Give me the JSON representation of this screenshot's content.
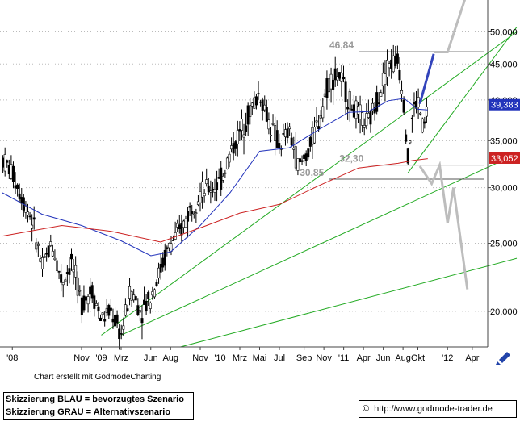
{
  "chart_data": {
    "type": "candlestick",
    "y_scale": "log",
    "ylim": [
      17.8,
      55.5
    ],
    "y_ticks": [
      {
        "value": 20,
        "label": "20,000"
      },
      {
        "value": 25,
        "label": "25,000"
      },
      {
        "value": 30,
        "label": "30,000"
      },
      {
        "value": 35,
        "label": "35,000"
      },
      {
        "value": 40,
        "label": "40,000"
      },
      {
        "value": 45,
        "label": "45,000"
      },
      {
        "value": 50,
        "label": "50,000"
      }
    ],
    "x_labels": [
      {
        "t": 1,
        "label": "'08"
      },
      {
        "t": 8,
        "label": "Nov"
      },
      {
        "t": 10,
        "label": "'09"
      },
      {
        "t": 12,
        "label": "Mrz"
      },
      {
        "t": 15,
        "label": "Jun"
      },
      {
        "t": 17,
        "label": "Aug"
      },
      {
        "t": 20,
        "label": "Nov"
      },
      {
        "t": 22,
        "label": "'10"
      },
      {
        "t": 24,
        "label": "Mrz"
      },
      {
        "t": 26,
        "label": "Mai"
      },
      {
        "t": 28,
        "label": "Jul"
      },
      {
        "t": 30.5,
        "label": "Sep"
      },
      {
        "t": 32.5,
        "label": "Nov"
      },
      {
        "t": 34.5,
        "label": "'11"
      },
      {
        "t": 36.5,
        "label": "Apr"
      },
      {
        "t": 38.5,
        "label": "Jun"
      },
      {
        "t": 40.5,
        "label": "Aug"
      },
      {
        "t": 42,
        "label": "Okt"
      },
      {
        "t": 45,
        "label": "'12"
      },
      {
        "t": 47.5,
        "label": "Apr"
      }
    ],
    "price_path": [
      [
        0,
        33
      ],
      [
        1,
        31.5
      ],
      [
        2,
        29
      ],
      [
        3,
        27
      ],
      [
        4,
        23
      ],
      [
        5,
        25
      ],
      [
        6,
        22
      ],
      [
        7,
        23.5
      ],
      [
        8,
        20.5
      ],
      [
        9,
        21.5
      ],
      [
        10,
        19.5
      ],
      [
        11,
        20
      ],
      [
        12,
        18.5
      ],
      [
        13,
        21.5
      ],
      [
        14,
        20
      ],
      [
        15,
        21
      ],
      [
        16,
        23
      ],
      [
        17,
        25
      ],
      [
        18,
        26
      ],
      [
        19,
        28
      ],
      [
        20,
        29.5
      ],
      [
        21,
        30
      ],
      [
        22,
        30.5
      ],
      [
        23,
        33.5
      ],
      [
        24,
        36
      ],
      [
        25,
        38.5
      ],
      [
        26,
        41
      ],
      [
        27,
        37
      ],
      [
        28,
        34.5
      ],
      [
        29,
        36
      ],
      [
        30,
        32
      ],
      [
        31,
        34
      ],
      [
        32,
        37.5
      ],
      [
        33,
        42.5
      ],
      [
        34,
        43.5
      ],
      [
        35,
        40
      ],
      [
        36,
        38
      ],
      [
        37,
        37
      ],
      [
        38,
        40.5
      ],
      [
        39,
        45
      ],
      [
        40,
        45.5
      ],
      [
        40.5,
        41
      ],
      [
        41,
        33
      ],
      [
        41.5,
        38.5
      ],
      [
        42,
        40
      ],
      [
        42.6,
        36
      ],
      [
        43,
        39.5
      ]
    ],
    "series": [
      {
        "name": "",
        "color": "#2233bb",
        "points": [
          [
            0,
            29.5
          ],
          [
            4,
            27.5
          ],
          [
            8,
            26.5
          ],
          [
            12,
            25.2
          ],
          [
            15,
            24
          ],
          [
            17,
            24.3
          ],
          [
            20,
            26.5
          ],
          [
            23,
            29.5
          ],
          [
            26,
            33.8
          ],
          [
            29,
            34.2
          ],
          [
            32,
            36.3
          ],
          [
            35,
            38.4
          ],
          [
            37,
            38.5
          ],
          [
            39,
            39.9
          ],
          [
            40.6,
            40.2
          ],
          [
            42,
            38.8
          ],
          [
            43,
            38.7
          ]
        ]
      },
      {
        "name": "",
        "color": "#cc2222",
        "points": [
          [
            0,
            25.6
          ],
          [
            6,
            26.5
          ],
          [
            11,
            26
          ],
          [
            16,
            25.1
          ],
          [
            20,
            26.3
          ],
          [
            24,
            27.6
          ],
          [
            28,
            28.4
          ],
          [
            32,
            30.2
          ],
          [
            36,
            32
          ],
          [
            40,
            32.5
          ],
          [
            41.5,
            32.8
          ],
          [
            43,
            33
          ]
        ]
      }
    ],
    "price_labels": [
      {
        "value": 39.383,
        "label": "39,383",
        "color": "#2233bb"
      },
      {
        "value": 33.052,
        "label": "33,052",
        "color": "#cc2222"
      }
    ],
    "levels": [
      {
        "value": 46.84,
        "label": "46,84",
        "from": 36
      },
      {
        "value": 32.3,
        "label": "32,30",
        "from": 37
      },
      {
        "value": 30.85,
        "label": "30,85",
        "from": 33
      }
    ],
    "trendlines": [
      {
        "color": "#22aa22",
        "from": [
          10,
          18.5
        ],
        "to": [
          52,
          50
        ]
      },
      {
        "color": "#22aa22",
        "from": [
          12,
          18.5
        ],
        "to": [
          52,
          33.5
        ]
      },
      {
        "color": "#22aa22",
        "from": [
          18,
          17.8
        ],
        "to": [
          52,
          23.8
        ]
      },
      {
        "color": "#22aa22",
        "from": [
          41,
          31.5
        ],
        "to": [
          52,
          50.8
        ]
      }
    ],
    "scenario_blue": {
      "color": "#3344bb",
      "points": [
        [
          42.2,
          39.5
        ],
        [
          43.6,
          46.5
        ]
      ]
    },
    "scenario_gray": [
      {
        "color": "#bdbdbd",
        "points": [
          [
            43.6,
            46.8
          ],
          [
            45,
            46.8
          ],
          [
            47,
            57
          ]
        ]
      },
      {
        "color": "#bdbdbd",
        "points": [
          [
            42.2,
            32.2
          ],
          [
            43.4,
            30.4
          ],
          [
            44.2,
            32.3
          ],
          [
            45,
            26.7
          ],
          [
            45.6,
            30
          ],
          [
            47,
            21.5
          ]
        ]
      }
    ]
  },
  "footer": {
    "credit": "Chart erstellt mit GodmodeCharting",
    "legend_blue": "Skizzierung BLAU = bevorzugtes Szenario",
    "legend_gray": "Skizzierung GRAU = Alternativszenario",
    "copyright_symbol": "©",
    "url": "http://www.godmode-trader.de"
  },
  "colors": {
    "axis": "#444444",
    "candle": "#000000",
    "level_line": "#555555",
    "grid_dots": "#bbbbbb"
  }
}
